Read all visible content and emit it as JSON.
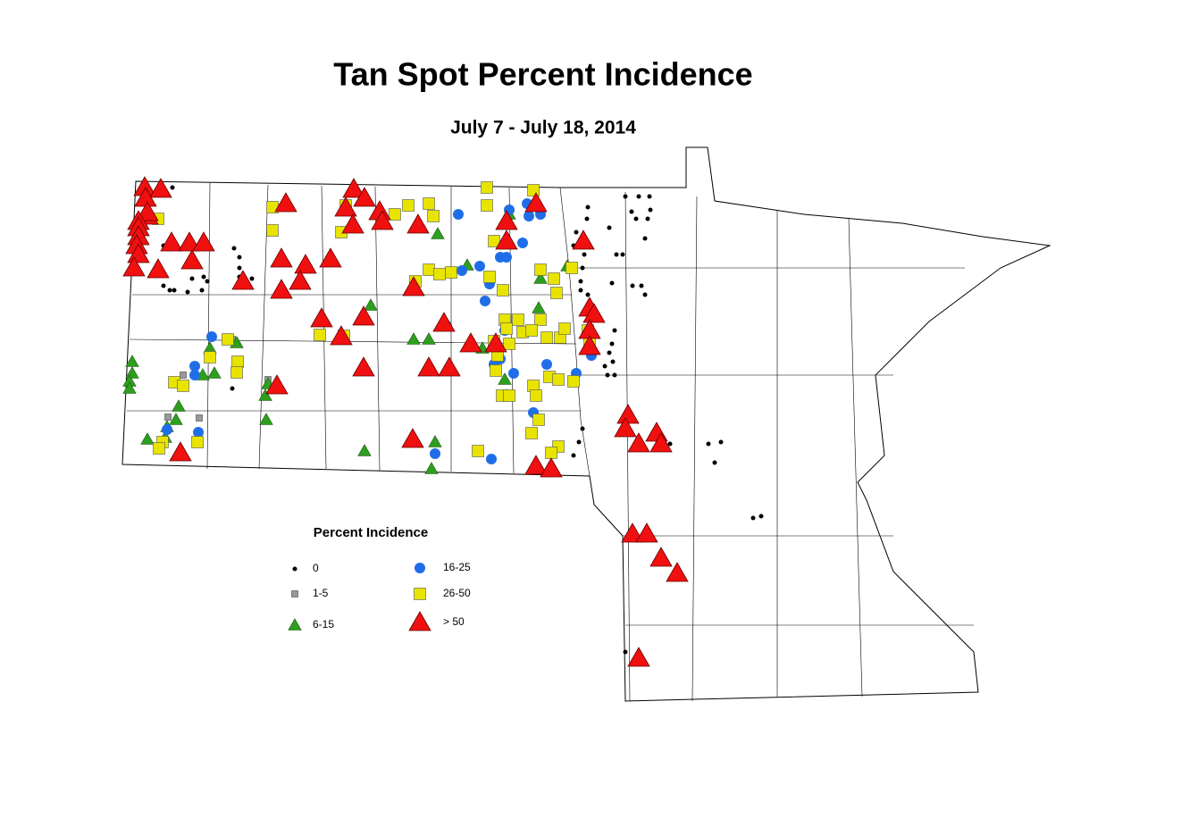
{
  "title": "Tan Spot Percent Incidence",
  "subtitle": "July 7 - July 18, 2014",
  "legend": {
    "title": "Percent Incidence",
    "items": [
      "0",
      "1-5",
      "6-15",
      "16-25",
      "26-50",
      "> 50"
    ]
  }
}
